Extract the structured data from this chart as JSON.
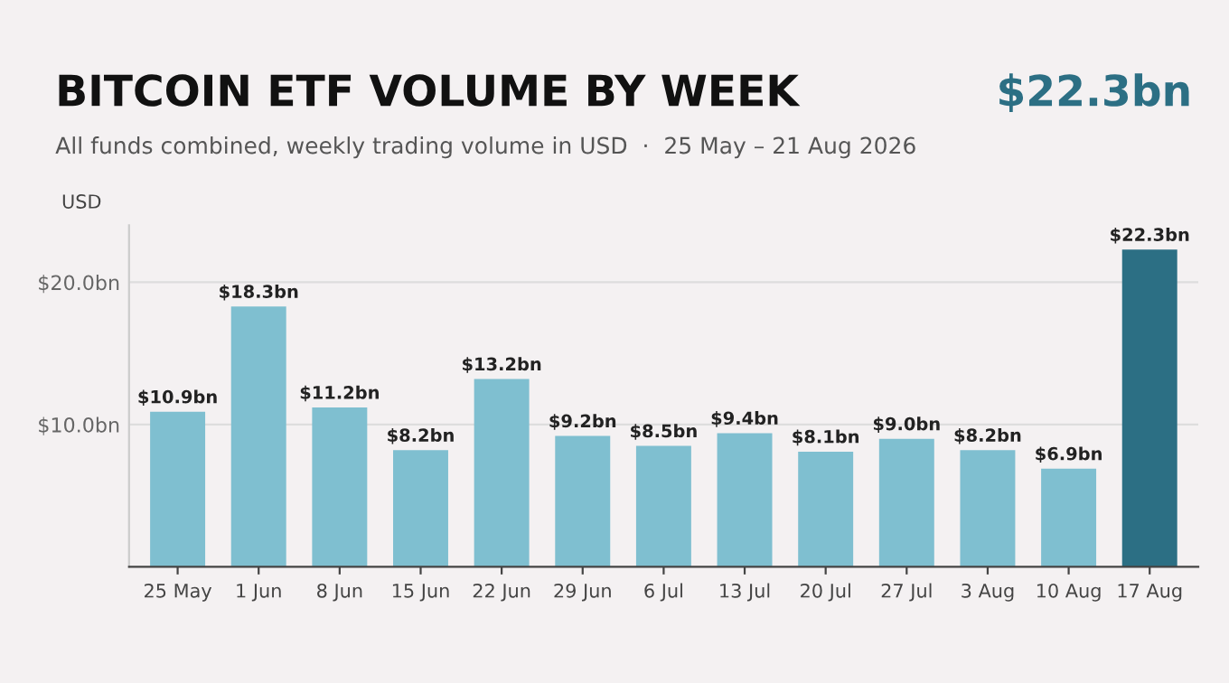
{
  "chart_data": {
    "type": "bar",
    "title": "BITCOIN ETF VOLUME BY WEEK",
    "subtitle": "All funds combined, weekly trading volume in USD  ·  25 May – 21 Aug 2026",
    "ylabel": "USD",
    "annotations": [
      "$22.3bn"
    ],
    "categories": [
      "25 May",
      "1 Jun",
      "8 Jun",
      "15 Jun",
      "22 Jun",
      "29 Jun",
      "6 Jul",
      "13 Jul",
      "20 Jul",
      "27 Jul",
      "3 Aug",
      "10 Aug",
      "17 Aug"
    ],
    "values": [
      10.9,
      18.3,
      11.2,
      8.2,
      13.2,
      9.2,
      8.5,
      9.4,
      8.1,
      9.0,
      8.2,
      6.9,
      22.3
    ],
    "colors": [
      "#7fbfd0",
      "#7fbfd0",
      "#7fbfd0",
      "#7fbfd0",
      "#7fbfd0",
      "#7fbfd0",
      "#7fbfd0",
      "#7fbfd0",
      "#7fbfd0",
      "#7fbfd0",
      "#7fbfd0",
      "#7fbfd0",
      "#2c6f84"
    ],
    "value_labels": [
      "$10.9bn",
      "$18.3bn",
      "$11.2bn",
      "$8.2bn",
      "$13.2bn",
      "$9.2bn",
      "$8.5bn",
      "$9.4bn",
      "$8.1bn",
      "$9.0bn",
      "$8.2bn",
      "$6.9bn",
      "$22.3bn"
    ],
    "ylim": [
      0,
      24
    ],
    "yticks": [
      {
        "value": 10,
        "label": "$10.0bn"
      },
      {
        "value": 20,
        "label": "$20.0bn"
      }
    ],
    "grid": "y",
    "legend": false
  }
}
